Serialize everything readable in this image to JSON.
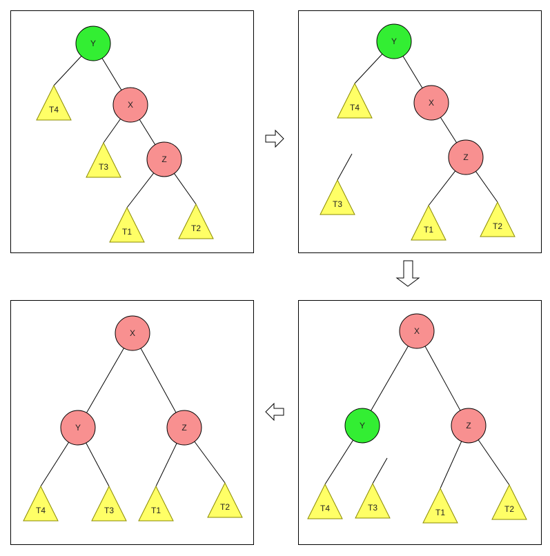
{
  "colors": {
    "green_node": "#33ee33",
    "red_node": "#f89090",
    "subtree": "#ffff66"
  },
  "panels": [
    {
      "name": "panel-step-1",
      "nodes": [
        {
          "id": "Y",
          "label": "Y",
          "color": "green"
        },
        {
          "id": "X",
          "label": "X",
          "color": "red"
        },
        {
          "id": "Z",
          "label": "Z",
          "color": "red"
        }
      ],
      "subtrees": [
        {
          "id": "T4",
          "label": "T4"
        },
        {
          "id": "T3",
          "label": "T3"
        },
        {
          "id": "T1",
          "label": "T1"
        },
        {
          "id": "T2",
          "label": "T2"
        }
      ]
    },
    {
      "name": "panel-step-2",
      "nodes": [
        {
          "id": "Y",
          "label": "Y",
          "color": "green"
        },
        {
          "id": "X",
          "label": "X",
          "color": "red"
        },
        {
          "id": "Z",
          "label": "Z",
          "color": "red"
        }
      ],
      "subtrees": [
        {
          "id": "T4",
          "label": "T4"
        },
        {
          "id": "T3",
          "label": "T3"
        },
        {
          "id": "T1",
          "label": "T1"
        },
        {
          "id": "T2",
          "label": "T2"
        }
      ]
    },
    {
      "name": "panel-step-3",
      "nodes": [
        {
          "id": "X",
          "label": "X",
          "color": "red"
        },
        {
          "id": "Y",
          "label": "Y",
          "color": "green"
        },
        {
          "id": "Z",
          "label": "Z",
          "color": "red"
        }
      ],
      "subtrees": [
        {
          "id": "T4",
          "label": "T4"
        },
        {
          "id": "T3",
          "label": "T3"
        },
        {
          "id": "T1",
          "label": "T1"
        },
        {
          "id": "T2",
          "label": "T2"
        }
      ]
    },
    {
      "name": "panel-step-4",
      "nodes": [
        {
          "id": "X",
          "label": "X",
          "color": "red"
        },
        {
          "id": "Y",
          "label": "Y",
          "color": "red"
        },
        {
          "id": "Z",
          "label": "Z",
          "color": "red"
        }
      ],
      "subtrees": [
        {
          "id": "T4",
          "label": "T4"
        },
        {
          "id": "T3",
          "label": "T3"
        },
        {
          "id": "T1",
          "label": "T1"
        },
        {
          "id": "T2",
          "label": "T2"
        }
      ]
    }
  ],
  "arrows": [
    {
      "name": "arrow-right",
      "direction": "right",
      "icon": "arrow-right-icon"
    },
    {
      "name": "arrow-down",
      "direction": "down",
      "icon": "arrow-down-icon"
    },
    {
      "name": "arrow-left",
      "direction": "left",
      "icon": "arrow-left-icon"
    }
  ]
}
